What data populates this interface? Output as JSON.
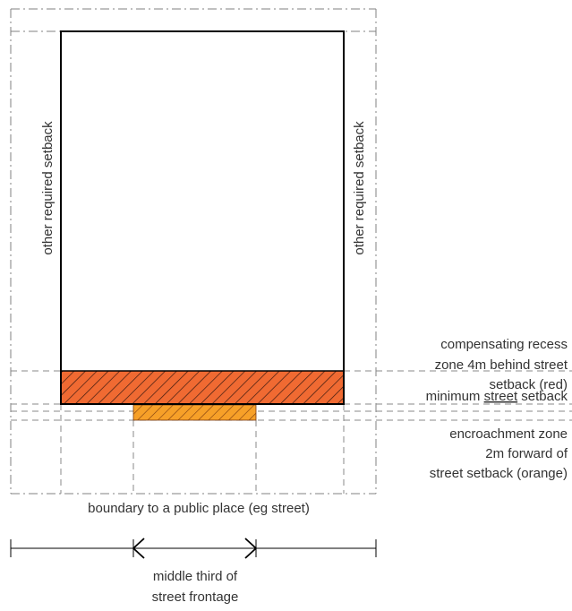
{
  "labels": {
    "setback_left": "other required setback",
    "setback_right": "other required setback",
    "recess_zone": [
      "compensating recess",
      "zone 4m behind street",
      "setback (red)"
    ],
    "min_setback_prefix": "minimum ",
    "min_setback_underlined": "street",
    "min_setback_suffix": " setback",
    "encroachment_zone": [
      "encroachment zone",
      "2m forward of",
      "street setback (orange)"
    ],
    "boundary": "boundary to a public place (eg street)",
    "middle_third": [
      "middle third of",
      "street frontage"
    ]
  },
  "colors": {
    "building_outline": "#000000",
    "dashdot_boundary": "#808080",
    "dashed_guides": "#888888",
    "recess_fill": "#f06a32",
    "recess_hatch": "#3a1a10",
    "encroach_fill": "#f7a028",
    "encroach_hatch": "#7a3a10",
    "text": "#333333"
  }
}
